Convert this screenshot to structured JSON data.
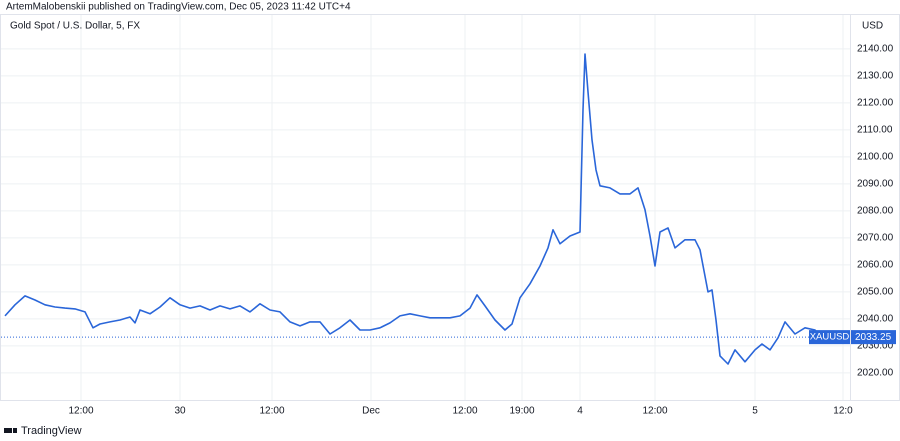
{
  "header": {
    "published": "ArtemMalobenskii published on TradingView.com, Dec 05, 2023 11:42 UTC+4",
    "footer": "TradingView"
  },
  "chart_data": {
    "type": "line",
    "title": "Gold Spot / U.S. Dollar, 5, FX",
    "currency": "USD",
    "grid": true,
    "x": [
      0,
      10,
      20,
      30,
      40,
      50,
      60,
      70,
      80,
      88,
      95,
      105,
      115,
      125,
      130,
      135,
      145,
      155,
      165,
      175,
      185,
      195,
      205,
      215,
      225,
      235,
      245,
      255,
      265,
      275,
      285,
      295,
      305,
      315,
      325,
      335,
      345,
      355,
      365,
      375,
      385,
      395,
      405,
      415,
      425,
      435,
      445,
      455,
      465,
      472,
      480,
      490,
      500,
      507,
      515,
      525,
      535,
      543,
      548,
      555,
      565,
      575,
      578,
      580,
      583,
      587,
      591,
      595,
      605,
      615,
      625,
      633,
      640,
      645,
      650,
      655,
      663,
      670,
      680,
      690,
      695,
      703,
      707,
      711,
      715,
      723,
      730,
      740,
      750,
      757,
      765,
      773,
      780,
      790,
      800,
      810,
      815
    ],
    "series": [
      {
        "name": "XAUUSD",
        "color": "#2a66d9",
        "values": [
          2041.1,
          2045.2,
          2048.5,
          2047,
          2045.2,
          2044.4,
          2044,
          2043.7,
          2042.6,
          2036.7,
          2038.1,
          2038.9,
          2039.6,
          2040.7,
          2038.5,
          2043.3,
          2041.9,
          2044.4,
          2047.8,
          2045.2,
          2044,
          2044.8,
          2043.3,
          2044.8,
          2043.7,
          2044.8,
          2042.6,
          2045.6,
          2043.3,
          2042.6,
          2038.9,
          2037.4,
          2038.9,
          2038.9,
          2034.4,
          2036.7,
          2039.6,
          2035.9,
          2035.9,
          2036.7,
          2038.5,
          2041.1,
          2041.9,
          2041.1,
          2040.4,
          2040.4,
          2040.4,
          2041.1,
          2044,
          2048.9,
          2044.8,
          2039.6,
          2035.9,
          2038.1,
          2047.8,
          2053,
          2059.6,
          2066.3,
          2073,
          2067.8,
          2070.7,
          2072.2,
          2117.4,
          2138.1,
          2124.1,
          2106.3,
          2095.2,
          2089.3,
          2088.5,
          2086.3,
          2086.3,
          2088.5,
          2080.4,
          2070.7,
          2059.6,
          2072.2,
          2073.7,
          2066.3,
          2069.3,
          2069.3,
          2065.6,
          2050,
          2050.7,
          2039.6,
          2026.3,
          2023.3,
          2028.5,
          2024.1,
          2028.5,
          2030.7,
          2028.5,
          2033,
          2038.9,
          2034.4,
          2036.7,
          2035.9,
          2033.3
        ]
      }
    ],
    "last_price": {
      "label": "XAUUSD",
      "value": 2033.25
    },
    "xlim": [
      0,
      845
    ],
    "xticks": [
      {
        "value": 76,
        "label": "12:00"
      },
      {
        "value": 175,
        "label": "30"
      },
      {
        "value": 267,
        "label": "12:00"
      },
      {
        "value": 366,
        "label": "Dec"
      },
      {
        "value": 460,
        "label": "12:00"
      },
      {
        "value": 517,
        "label": "19:00"
      },
      {
        "value": 575,
        "label": "4"
      },
      {
        "value": 650,
        "label": "12:00"
      },
      {
        "value": 750,
        "label": "5"
      },
      {
        "value": 838,
        "label": "12:0"
      }
    ],
    "ylim": [
      2010.7,
      2150.7
    ],
    "yticks": [
      {
        "value": 2020,
        "label": "2020.00"
      },
      {
        "value": 2030,
        "label": "2030.00"
      },
      {
        "value": 2040,
        "label": "2040.00"
      },
      {
        "value": 2050,
        "label": "2050.00"
      },
      {
        "value": 2060,
        "label": "2060.00"
      },
      {
        "value": 2070,
        "label": "2070.00"
      },
      {
        "value": 2080,
        "label": "2080.00"
      },
      {
        "value": 2090,
        "label": "2090.00"
      },
      {
        "value": 2100,
        "label": "2100.00"
      },
      {
        "value": 2110,
        "label": "2110.00"
      },
      {
        "value": 2120,
        "label": "2120.00"
      },
      {
        "value": 2130,
        "label": "2130.00"
      },
      {
        "value": 2140,
        "label": "2140.00"
      }
    ]
  }
}
